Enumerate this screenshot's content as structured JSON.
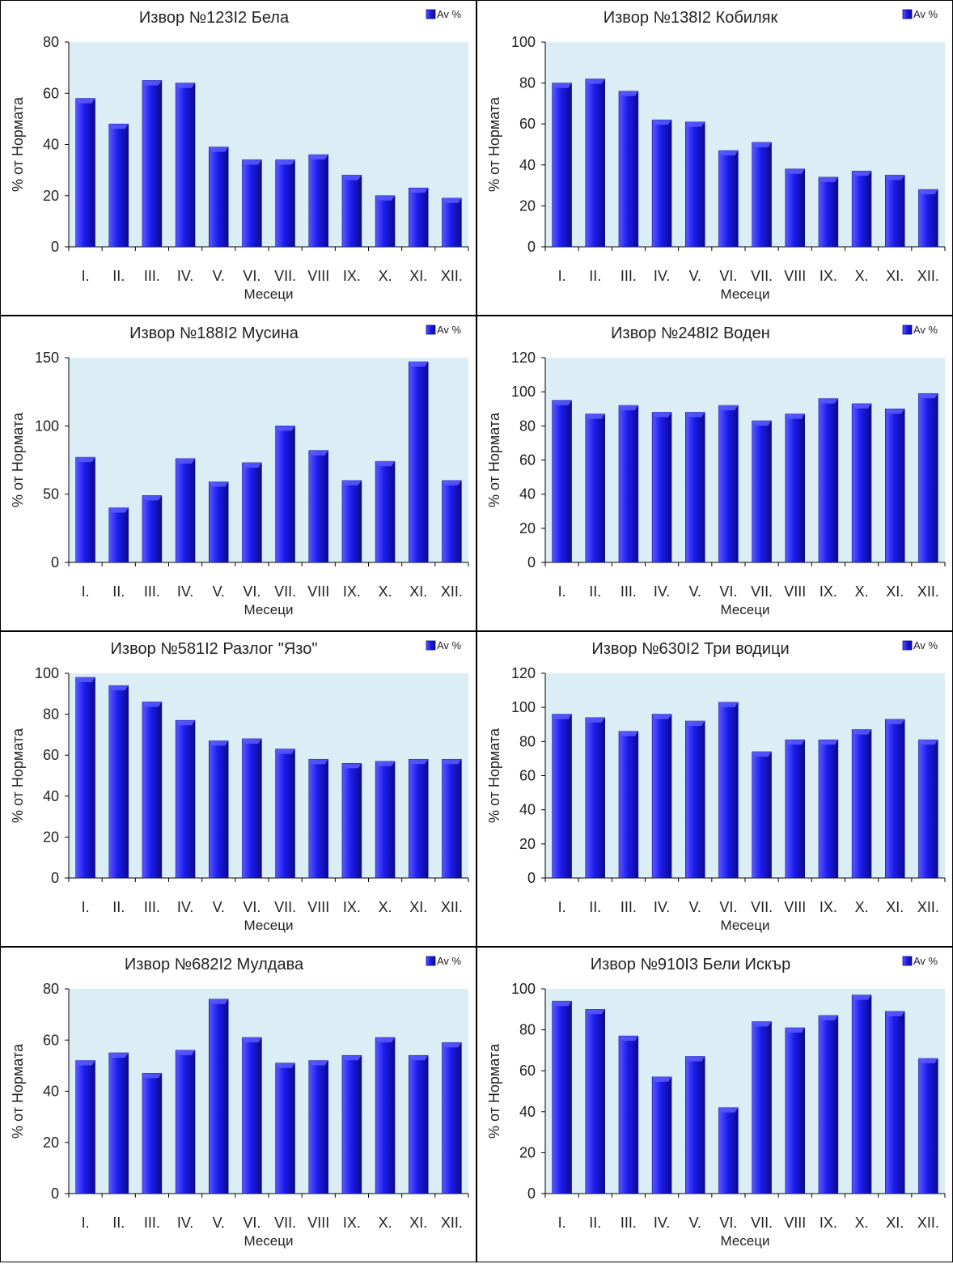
{
  "colors": {
    "bar": "#1c1cee",
    "bar_top": "#5a5aff",
    "bar_edge": "#0a0a8c",
    "plot_bg": "#dbeef5",
    "border": "#000000"
  },
  "chart_data": [
    {
      "type": "bar",
      "title": "Извор №123I2  Бела",
      "legend": "Av %",
      "legend_position": "top-right",
      "xlabel": "Месеци",
      "ylabel": "% от Нормата",
      "ylim": [
        0,
        80
      ],
      "yticks": [
        0,
        20,
        40,
        60,
        80
      ],
      "categories": [
        "I.",
        "II.",
        "III.",
        "IV.",
        "V.",
        "VI.",
        "VII.",
        "VIII",
        "IX.",
        "X.",
        "XI.",
        "XII."
      ],
      "values": [
        58,
        48,
        65,
        64,
        39,
        34,
        34,
        36,
        28,
        20,
        23,
        19
      ]
    },
    {
      "type": "bar",
      "title": "Извор №138I2  Кобиляк",
      "legend": "Av %",
      "legend_position": "top-right",
      "xlabel": "Месеци",
      "ylabel": "% от Нормата",
      "ylim": [
        0,
        100
      ],
      "yticks": [
        0,
        20,
        40,
        60,
        80,
        100
      ],
      "categories": [
        "I.",
        "II.",
        "III.",
        "IV.",
        "V.",
        "VI.",
        "VII.",
        "VIII",
        "IX.",
        "X.",
        "XI.",
        "XII."
      ],
      "values": [
        80,
        82,
        76,
        62,
        61,
        47,
        51,
        38,
        34,
        37,
        35,
        28
      ]
    },
    {
      "type": "bar",
      "title": "Извор №188I2  Мусина",
      "legend": "Av %",
      "legend_position": "top-right",
      "xlabel": "Месеци",
      "ylabel": "% от Нормата",
      "ylim": [
        0,
        150
      ],
      "yticks": [
        0,
        50,
        100,
        150
      ],
      "categories": [
        "I.",
        "II.",
        "III.",
        "IV.",
        "V.",
        "VI.",
        "VII.",
        "VIII",
        "IX.",
        "X.",
        "XI.",
        "XII."
      ],
      "values": [
        77,
        40,
        49,
        76,
        59,
        73,
        100,
        82,
        60,
        74,
        147,
        60
      ]
    },
    {
      "type": "bar",
      "title": "Извор №248I2  Воден",
      "legend": "Av %",
      "legend_position": "top-right",
      "xlabel": "Месеци",
      "ylabel": "% от Нормата",
      "ylim": [
        0,
        120
      ],
      "yticks": [
        0,
        20,
        40,
        60,
        80,
        100,
        120
      ],
      "categories": [
        "I.",
        "II.",
        "III.",
        "IV.",
        "V.",
        "VI.",
        "VII.",
        "VIII",
        "IX.",
        "X.",
        "XI.",
        "XII."
      ],
      "values": [
        95,
        87,
        92,
        88,
        88,
        92,
        83,
        87,
        96,
        93,
        90,
        99
      ]
    },
    {
      "type": "bar",
      "title": "Извор №581I2  Разлог \"Язо\"",
      "legend": "Av %",
      "legend_position": "top-right",
      "xlabel": "Месеци",
      "ylabel": "% от Нормата",
      "ylim": [
        0,
        100
      ],
      "yticks": [
        0,
        20,
        40,
        60,
        80,
        100
      ],
      "categories": [
        "I.",
        "II.",
        "III.",
        "IV.",
        "V.",
        "VI.",
        "VII.",
        "VIII",
        "IX.",
        "X.",
        "XI.",
        "XII."
      ],
      "values": [
        98,
        94,
        86,
        77,
        67,
        68,
        63,
        58,
        56,
        57,
        58,
        58
      ]
    },
    {
      "type": "bar",
      "title": "Извор №630I2  Три водици",
      "legend": "Av %",
      "legend_position": "top-right",
      "xlabel": "Месеци",
      "ylabel": "% от Нормата",
      "ylim": [
        0,
        120
      ],
      "yticks": [
        0,
        20,
        40,
        60,
        80,
        100,
        120
      ],
      "categories": [
        "I.",
        "II.",
        "III.",
        "IV.",
        "V.",
        "VI.",
        "VII.",
        "VIII",
        "IX.",
        "X.",
        "XI.",
        "XII."
      ],
      "values": [
        96,
        94,
        86,
        96,
        92,
        103,
        74,
        81,
        81,
        87,
        93,
        81
      ]
    },
    {
      "type": "bar",
      "title": "Извор №682I2  Мулдава",
      "legend": "Av %",
      "legend_position": "top-right",
      "xlabel": "Месеци",
      "ylabel": "% от Нормата",
      "ylim": [
        0,
        80
      ],
      "yticks": [
        0,
        20,
        40,
        60,
        80
      ],
      "categories": [
        "I.",
        "II.",
        "III.",
        "IV.",
        "V.",
        "VI.",
        "VII.",
        "VIII",
        "IX.",
        "X.",
        "XI.",
        "XII."
      ],
      "values": [
        52,
        55,
        47,
        56,
        76,
        61,
        51,
        52,
        54,
        61,
        54,
        59
      ]
    },
    {
      "type": "bar",
      "title": "Извор №910I3  Бели Искър",
      "legend": "Av %",
      "legend_position": "top-right",
      "xlabel": "Месеци",
      "ylabel": "% от Нормата",
      "ylim": [
        0,
        100
      ],
      "yticks": [
        0,
        20,
        40,
        60,
        80,
        100
      ],
      "categories": [
        "I.",
        "II.",
        "III.",
        "IV.",
        "V.",
        "VI.",
        "VII.",
        "VIII",
        "IX.",
        "X.",
        "XI.",
        "XII."
      ],
      "values": [
        94,
        90,
        77,
        57,
        67,
        42,
        84,
        81,
        87,
        97,
        89,
        66
      ]
    }
  ]
}
